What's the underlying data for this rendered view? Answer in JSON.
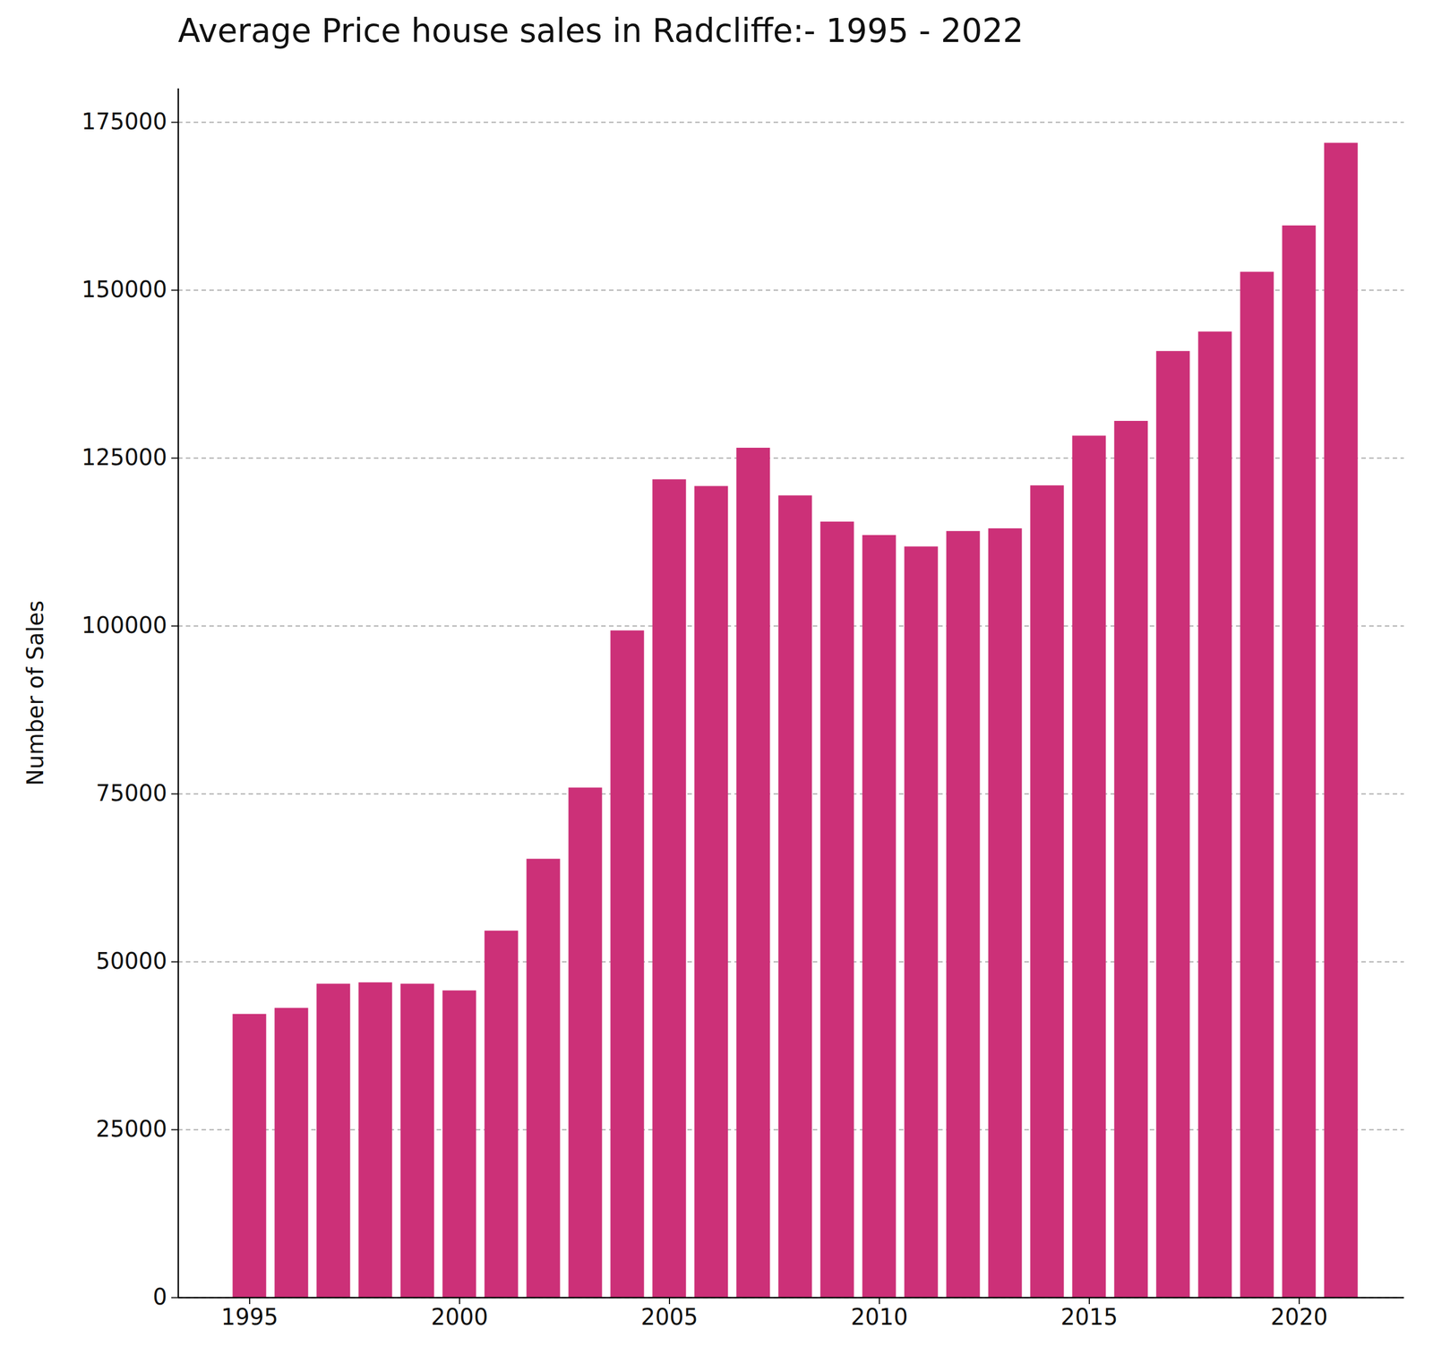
{
  "chart_data": {
    "type": "bar",
    "title": "Average Price house sales in Radcliffe:- 1995 - 2022",
    "y_label": "Number of Sales",
    "x": [
      1995,
      1996,
      1997,
      1998,
      1999,
      2000,
      2001,
      2002,
      2003,
      2004,
      2005,
      2006,
      2007,
      2008,
      2009,
      2010,
      2011,
      2012,
      2013,
      2014,
      2015,
      2016,
      2017,
      2018,
      2019,
      2020,
      2021
    ],
    "values": [
      42200,
      43100,
      46700,
      46900,
      46700,
      45700,
      54600,
      65300,
      75900,
      99300,
      121800,
      120800,
      126500,
      119400,
      115500,
      113500,
      111800,
      114100,
      114500,
      120900,
      128300,
      130500,
      140900,
      143800,
      152700,
      159600,
      171900
    ],
    "color": "#cc3078",
    "xlim": [
      1993.3,
      2022.5
    ],
    "xticks": [
      1995,
      2000,
      2005,
      2010,
      2015,
      2020
    ],
    "ylim": [
      0,
      180000
    ],
    "yticks": [
      0,
      25000,
      50000,
      75000,
      100000,
      125000,
      150000,
      175000
    ],
    "grid": true
  }
}
